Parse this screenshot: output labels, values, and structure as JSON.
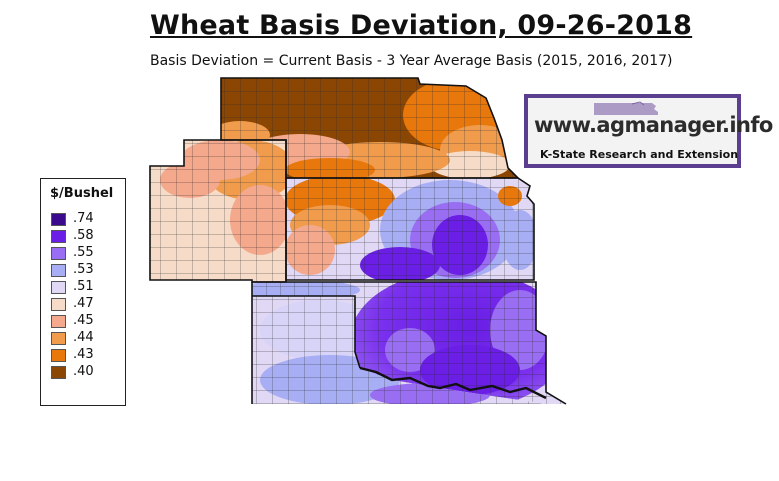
{
  "title": "Wheat Basis Deviation, 09-26-2018",
  "subtitle": "Basis Deviation = Current Basis - 3 Year Average Basis (2015, 2016, 2017)",
  "legend": {
    "title": "$/Bushel",
    "items": [
      {
        "label": ".74",
        "color": "#3c0a8c"
      },
      {
        "label": ".58",
        "color": "#6a1ee6"
      },
      {
        "label": ".55",
        "color": "#9a6ef2"
      },
      {
        "label": ".53",
        "color": "#a8aef4"
      },
      {
        "label": ".51",
        "color": "#e0d8f4"
      },
      {
        "label": ".47",
        "color": "#f6dcc8"
      },
      {
        "label": ".45",
        "color": "#f4a88c"
      },
      {
        "label": ".44",
        "color": "#f09c4c"
      },
      {
        "label": ".43",
        "color": "#e8780c"
      },
      {
        "label": ".40",
        "color": "#8c4604"
      }
    ]
  },
  "logo": {
    "url_text": "www.agmanager.info",
    "tagline": "K-State Research and Extension",
    "border_color": "#5b3e8f"
  },
  "map": {
    "region": "Nebraska, Colorado, Kansas, Oklahoma",
    "colors": {
      "dark_brown": "#8c4604",
      "orange": "#e8780c",
      "light_orange": "#f09c4c",
      "salmon": "#f4a88c",
      "peach": "#f6dcc8",
      "lavender": "#e0d8f4",
      "periwinkle": "#a8aef4",
      "medium_purple": "#9a6ef2",
      "purple": "#6a1ee6",
      "dark_purple": "#3c0a8c"
    }
  }
}
